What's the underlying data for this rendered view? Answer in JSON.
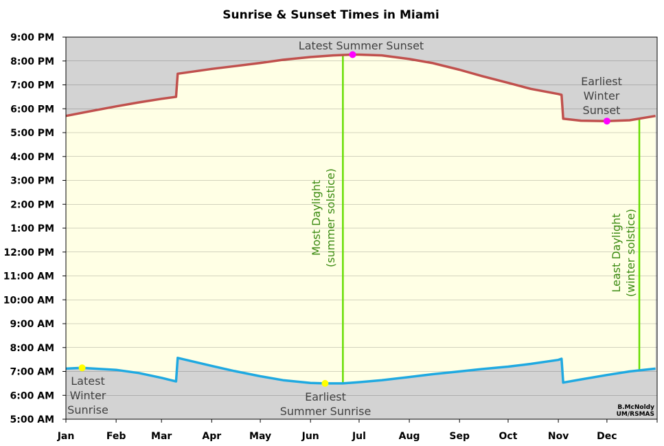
{
  "chart_data": {
    "type": "line",
    "title": "Sunrise & Sunset Times in Miami",
    "xlabel": "",
    "ylabel": "",
    "x_ticks": [
      "Jan",
      "Feb",
      "Mar",
      "Apr",
      "May",
      "Jun",
      "Jul",
      "Aug",
      "Sep",
      "Oct",
      "Nov",
      "Dec"
    ],
    "y_ticks": [
      "5:00 AM",
      "6:00 AM",
      "7:00 AM",
      "8:00 AM",
      "9:00 AM",
      "10:00 AM",
      "11:00 AM",
      "12:00 PM",
      "1:00 PM",
      "2:00 PM",
      "3:00 PM",
      "4:00 PM",
      "5:00 PM",
      "6:00 PM",
      "7:00 PM",
      "8:00 PM",
      "9:00 PM"
    ],
    "ylim": [
      "5:00 AM",
      "9:00 PM"
    ],
    "grid": true,
    "series": [
      {
        "name": "Sunset",
        "color": "#c0504d",
        "x": [
          "Jan 1",
          "Jan 15",
          "Feb 1",
          "Feb 15",
          "Mar 1",
          "Mar 10",
          "Mar 11",
          "Apr 1",
          "Apr 15",
          "May 1",
          "May 15",
          "Jun 1",
          "Jun 15",
          "Jun 27",
          "Jul 1",
          "Jul 15",
          "Aug 1",
          "Aug 15",
          "Sep 1",
          "Sep 15",
          "Oct 1",
          "Oct 15",
          "Nov 1",
          "Nov 3",
          "Nov 4",
          "Nov 15",
          "Dec 1",
          "Dec 15",
          "Dec 31"
        ],
        "y": [
          "5:42 PM",
          "5:53 PM",
          "6:06 PM",
          "6:16 PM",
          "6:25 PM",
          "6:30 PM",
          "7:28 PM",
          "7:40 PM",
          "7:47 PM",
          "7:55 PM",
          "8:03 PM",
          "8:10 PM",
          "8:14 PM",
          "8:16 PM",
          "8:16 PM",
          "8:14 PM",
          "8:05 PM",
          "7:55 PM",
          "7:38 PM",
          "7:22 PM",
          "7:05 PM",
          "6:50 PM",
          "6:37 PM",
          "6:35 PM",
          "5:35 PM",
          "5:30 PM",
          "5:29 PM",
          "5:31 PM",
          "5:42 PM"
        ]
      },
      {
        "name": "Sunrise",
        "color": "#1fa9e1",
        "x": [
          "Jan 1",
          "Jan 11",
          "Feb 1",
          "Feb 15",
          "Mar 1",
          "Mar 10",
          "Mar 11",
          "Apr 1",
          "Apr 15",
          "May 1",
          "May 15",
          "Jun 1",
          "Jun 10",
          "Jun 21",
          "Jul 1",
          "Jul 15",
          "Aug 1",
          "Aug 15",
          "Sep 1",
          "Sep 15",
          "Oct 1",
          "Oct 15",
          "Nov 1",
          "Nov 3",
          "Nov 4",
          "Nov 15",
          "Dec 1",
          "Dec 15",
          "Dec 31"
        ],
        "y": [
          "7:07 AM",
          "7:09 AM",
          "7:04 AM",
          "6:56 AM",
          "6:44 AM",
          "6:35 AM",
          "7:34 AM",
          "7:14 AM",
          "7:01 AM",
          "6:48 AM",
          "6:38 AM",
          "6:31 AM",
          "6:30 AM",
          "6:30 AM",
          "6:33 AM",
          "6:38 AM",
          "6:46 AM",
          "6:53 AM",
          "7:00 AM",
          "7:06 AM",
          "7:12 AM",
          "7:19 AM",
          "7:29 AM",
          "7:32 AM",
          "6:32 AM",
          "6:40 AM",
          "6:51 AM",
          "7:00 AM",
          "7:07 AM"
        ]
      }
    ],
    "markers": [
      {
        "label": "Latest Summer Sunset",
        "x": "Jun 27",
        "y": "8:16 PM",
        "color": "#ff00ff"
      },
      {
        "label": "Earliest Winter Sunset",
        "x": "Dec 1",
        "y": "5:29 PM",
        "color": "#ff00ff"
      },
      {
        "label": "Latest Winter Sunrise",
        "x": "Jan 11",
        "y": "7:09 AM",
        "color": "#ffff00"
      },
      {
        "label": "Earliest Summer Sunrise",
        "x": "Jun 10",
        "y": "6:30 AM",
        "color": "#ffff00"
      }
    ],
    "vertical_lines": [
      {
        "label": "Most Daylight (summer solstice)",
        "x": "Jun 21",
        "color": "#66dd00"
      },
      {
        "label": "Least Daylight (winter solstice)",
        "x": "Dec 21",
        "color": "#66dd00"
      }
    ],
    "fill_between_color": "#ffffe5",
    "background_color": "#d3d3d3"
  },
  "annotations": {
    "latest_summer_sunset": "Latest Summer Sunset",
    "earliest_winter_sunset": [
      "Earliest",
      "Winter",
      "Sunset"
    ],
    "latest_winter_sunrise": [
      "Latest",
      "Winter",
      "Sunrise"
    ],
    "earliest_summer_sunrise": [
      "Earliest",
      "Summer Sunrise"
    ],
    "most_daylight": [
      "Most Daylight",
      "(summer solstice)"
    ],
    "least_daylight": [
      "Least Daylight",
      "(winter solstice)"
    ]
  },
  "credit": [
    "B.McNoldy",
    "UM/RSMAS"
  ]
}
